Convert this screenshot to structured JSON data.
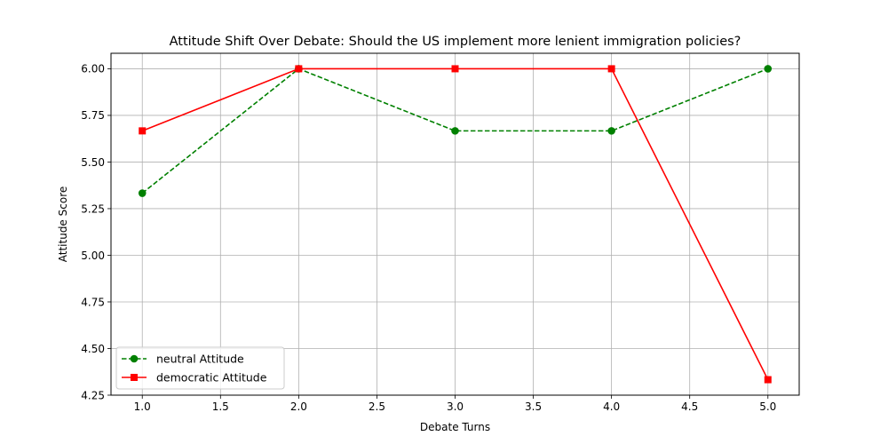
{
  "chart_data": {
    "type": "line",
    "title": "Attitude Shift Over Debate: Should the US implement more lenient immigration policies?",
    "xlabel": "Debate Turns",
    "ylabel": "Attitude Score",
    "xlim": [
      0.8,
      5.2
    ],
    "ylim": [
      4.25,
      6.083
    ],
    "xticks": [
      1.0,
      1.5,
      2.0,
      2.5,
      3.0,
      3.5,
      4.0,
      4.5,
      5.0
    ],
    "xtick_labels": [
      "1.0",
      "1.5",
      "2.0",
      "2.5",
      "3.0",
      "3.5",
      "4.0",
      "4.5",
      "5.0"
    ],
    "yticks": [
      4.25,
      4.5,
      4.75,
      5.0,
      5.25,
      5.5,
      5.75,
      6.0
    ],
    "ytick_labels": [
      "4.25",
      "4.50",
      "4.75",
      "5.00",
      "5.25",
      "5.50",
      "5.75",
      "6.00"
    ],
    "grid": true,
    "legend_position": "lower-left",
    "x": [
      1,
      2,
      3,
      4,
      5
    ],
    "series": [
      {
        "name": "neutral Attitude",
        "values": [
          5.333,
          6.0,
          5.667,
          5.667,
          6.0
        ],
        "color": "#008000",
        "line_style": "dashed",
        "marker": "circle"
      },
      {
        "name": "democratic Attitude",
        "values": [
          5.667,
          6.0,
          6.0,
          6.0,
          4.333
        ],
        "color": "#ff0000",
        "line_style": "solid",
        "marker": "square"
      }
    ]
  }
}
